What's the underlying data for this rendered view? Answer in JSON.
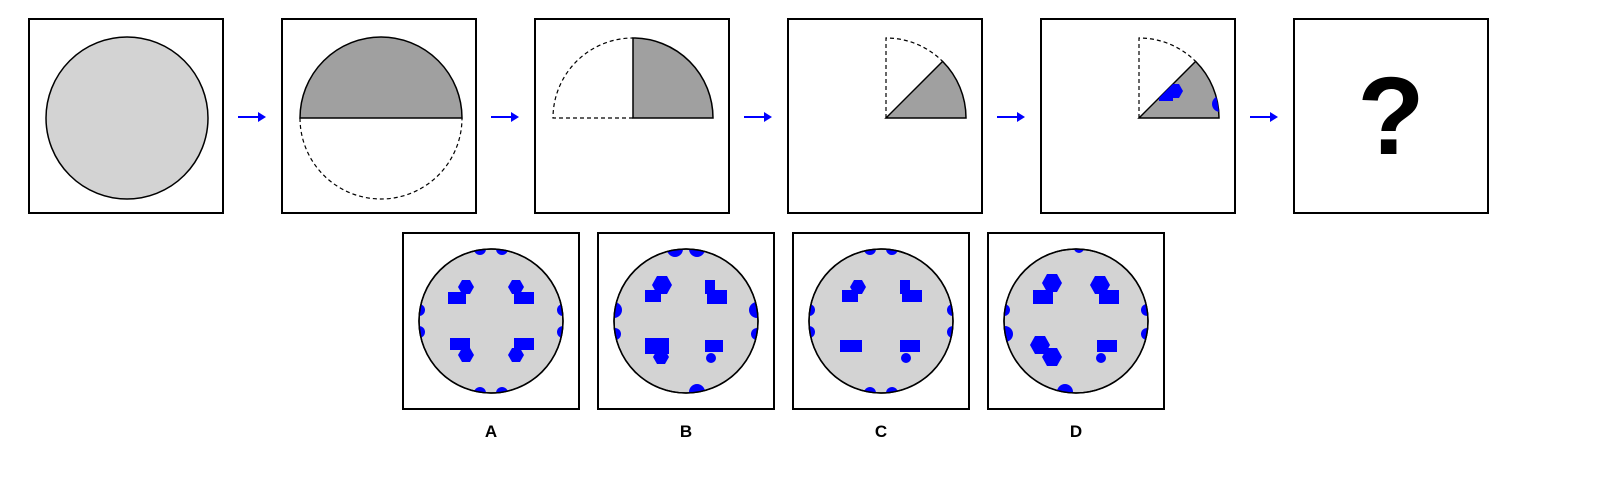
{
  "question": {
    "steps": [
      {
        "id": "step-1",
        "shape": "full-circle"
      },
      {
        "id": "step-2",
        "shape": "fold-top-half"
      },
      {
        "id": "step-3",
        "shape": "fold-right-quarter"
      },
      {
        "id": "step-4",
        "shape": "fold-eighth"
      },
      {
        "id": "step-5",
        "shape": "punched-eighth"
      },
      {
        "id": "step-6",
        "shape": "unknown"
      }
    ],
    "unknown_symbol": "?"
  },
  "options": [
    {
      "label": "A"
    },
    {
      "label": "B"
    },
    {
      "label": "C"
    },
    {
      "label": "D"
    }
  ],
  "colors": {
    "paper_light": "#d3d3d3",
    "paper_folded": "#a0a0a0",
    "hole": "#0000ff",
    "arrow": "#0000ff",
    "border": "#000000"
  }
}
